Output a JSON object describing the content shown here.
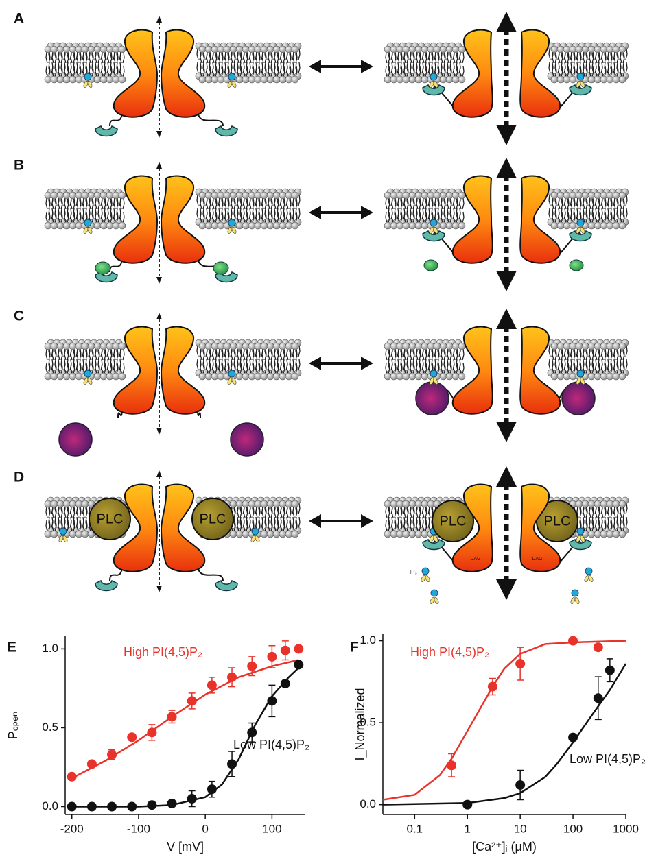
{
  "panels": {
    "labels": [
      "A",
      "B",
      "C",
      "D"
    ],
    "plc": "PLC",
    "dag": "DAG",
    "ip3": "IP₃"
  },
  "chart_data": [
    {
      "type": "scatter",
      "label": "E",
      "xlabel": "V [mV]",
      "ylabel": "Pₒₚₑₙ",
      "xscale": "linear",
      "xlim": [
        -210,
        150
      ],
      "ylim": [
        -0.05,
        1.08
      ],
      "xticks": [
        -200,
        -100,
        0,
        100
      ],
      "yticks": [
        {
          "value": 0,
          "label": "0.0"
        },
        {
          "value": 0.5,
          "label": "0.5"
        },
        {
          "value": 1,
          "label": "1.0"
        }
      ],
      "series": [
        {
          "name": "High PI(4,5)P₂",
          "color": "#e8322a",
          "x": [
            -200,
            -170,
            -140,
            -110,
            -80,
            -50,
            -20,
            10,
            40,
            70,
            100,
            120,
            140
          ],
          "values": [
            0.19,
            0.27,
            0.33,
            0.44,
            0.47,
            0.57,
            0.67,
            0.77,
            0.82,
            0.89,
            0.95,
            0.99,
            1.0
          ],
          "errors": [
            null,
            0.02,
            0.03,
            0.02,
            0.05,
            0.04,
            0.05,
            0.05,
            0.06,
            0.06,
            0.07,
            0.06,
            null
          ],
          "fit_x": [
            -200,
            -150,
            -100,
            -50,
            0,
            50,
            100,
            140
          ],
          "fit_values": [
            0.18,
            0.29,
            0.42,
            0.57,
            0.71,
            0.82,
            0.89,
            0.93
          ]
        },
        {
          "name": "Low PI(4,5)P₂",
          "color": "#111111",
          "x": [
            -200,
            -170,
            -140,
            -110,
            -80,
            -50,
            -20,
            10,
            40,
            70,
            100,
            120,
            140
          ],
          "values": [
            0.0,
            0.0,
            0.0,
            0.0,
            0.01,
            0.02,
            0.05,
            0.11,
            0.27,
            0.47,
            0.67,
            0.78,
            0.9
          ],
          "errors": [
            null,
            null,
            null,
            null,
            null,
            null,
            0.05,
            0.05,
            0.08,
            0.06,
            0.1,
            null,
            null
          ],
          "fit_x": [
            -200,
            -100,
            -50,
            0,
            25,
            50,
            75,
            100,
            125,
            140
          ],
          "fit_values": [
            0.0,
            0.0,
            0.01,
            0.06,
            0.14,
            0.3,
            0.52,
            0.7,
            0.82,
            0.88
          ]
        }
      ]
    },
    {
      "type": "scatter",
      "label": "F",
      "xlabel": "[Ca²⁺]ᵢ (μM)",
      "ylabel": "I_Normalized",
      "xscale": "log",
      "xlim": [
        0.025,
        1000
      ],
      "ylim": [
        -0.06,
        1.04
      ],
      "xticks": [
        0.1,
        1,
        10,
        100,
        1000
      ],
      "yticks": [
        {
          "value": 0,
          "label": "0.0"
        },
        {
          "value": 0.5,
          "label": "0.5"
        },
        {
          "value": 1,
          "label": "1.0"
        }
      ],
      "series": [
        {
          "name": "High PI(4,5)P₂",
          "color": "#e8322a",
          "x": [
            0.5,
            3,
            10,
            100,
            300
          ],
          "values": [
            0.24,
            0.72,
            0.86,
            1.0,
            0.96
          ],
          "errors": [
            0.07,
            0.05,
            0.1,
            null,
            null
          ],
          "fit_x": [
            0.025,
            0.1,
            0.3,
            0.5,
            1,
            2,
            3,
            5,
            10,
            30,
            100,
            1000
          ],
          "fit_values": [
            0.03,
            0.06,
            0.18,
            0.28,
            0.45,
            0.62,
            0.72,
            0.83,
            0.92,
            0.98,
            0.99,
            1.0
          ]
        },
        {
          "name": "Low PI(4,5)P₂",
          "color": "#111111",
          "x": [
            1,
            10,
            100,
            300,
            500
          ],
          "values": [
            0.0,
            0.12,
            0.41,
            0.65,
            0.82
          ],
          "errors": [
            null,
            0.09,
            null,
            0.13,
            0.07
          ],
          "fit_x": [
            0.025,
            1,
            5,
            10,
            30,
            50,
            100,
            200,
            300,
            500,
            1000
          ],
          "fit_values": [
            0.0,
            0.01,
            0.04,
            0.07,
            0.17,
            0.25,
            0.38,
            0.52,
            0.6,
            0.7,
            0.86
          ]
        }
      ]
    }
  ]
}
